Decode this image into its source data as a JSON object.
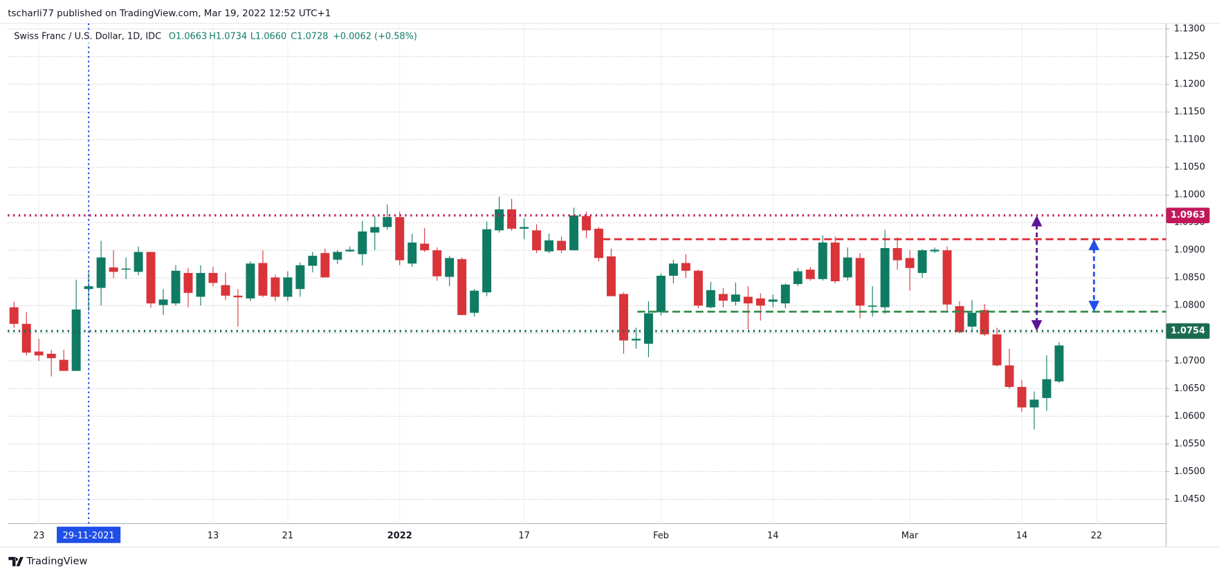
{
  "header": {
    "publisher": "tscharli77 published on TradingView.com, Mar 19, 2022 12:52 UTC+1"
  },
  "footer": {
    "brand": "TradingView"
  },
  "chart_data": {
    "type": "candlestick",
    "title": "Swiss Franc / U.S. Dollar, 1D, IDC",
    "ohlc": [
      "O1.0663",
      "H1.0734",
      "L1.0660",
      "C1.0728",
      "+0.0062 (+0.58%)"
    ],
    "up_color": "#0f7b63",
    "down_color": "#d8343a",
    "open": [
      1.0797,
      1.0767,
      1.0717,
      1.0713,
      1.0702,
      1.0682,
      1.083,
      1.0832,
      1.0869,
      1.0865,
      1.0861,
      1.0897,
      1.0801,
      1.0804,
      1.0859,
      1.0816,
      1.0859,
      1.0837,
      1.0818,
      1.0813,
      1.0877,
      1.0851,
      1.0816,
      1.083,
      1.0872,
      1.0895,
      1.0883,
      1.0898,
      1.0893,
      1.0932,
      1.0942,
      1.096,
      1.0876,
      1.0912,
      1.09,
      1.0852,
      1.0884,
      1.0787,
      1.0824,
      1.0936,
      1.0974,
      1.0939,
      1.0936,
      1.0898,
      1.0917,
      1.09,
      1.0962,
      1.0939,
      1.0889,
      1.0821,
      1.0737,
      1.0731,
      1.0788,
      1.0854,
      1.0877,
      1.0863,
      1.0797,
      1.0821,
      1.0807,
      1.0816,
      1.0813,
      1.0807,
      1.0804,
      1.0839,
      1.0865,
      1.0848,
      1.0914,
      1.0851,
      1.0886,
      1.0798,
      1.0797,
      1.0904,
      1.0886,
      1.0859,
      1.0898,
      1.09,
      1.0799,
      1.0762,
      1.0792,
      1.0748,
      1.0692,
      1.0653,
      1.0616,
      1.0633,
      1.0663
    ],
    "high": [
      1.0807,
      1.0788,
      1.074,
      1.072,
      1.072,
      1.0847,
      1.086,
      1.0917,
      1.09,
      1.0887,
      1.0907,
      1.0897,
      1.083,
      1.0873,
      1.0868,
      1.0873,
      1.087,
      1.086,
      1.083,
      1.088,
      1.09,
      1.0856,
      1.0862,
      1.0878,
      1.0897,
      1.0903,
      1.09,
      1.0907,
      1.0953,
      1.0962,
      1.0983,
      1.097,
      1.093,
      1.094,
      1.0905,
      1.089,
      1.0887,
      1.083,
      1.0952,
      1.0997,
      1.0993,
      1.0958,
      1.0947,
      1.093,
      1.0925,
      1.0977,
      1.097,
      1.0942,
      1.0903,
      1.0824,
      1.076,
      1.0808,
      1.0858,
      1.0883,
      1.0893,
      1.0865,
      1.0843,
      1.0832,
      1.0842,
      1.0835,
      1.0822,
      1.082,
      1.084,
      1.0868,
      1.087,
      1.0927,
      1.0925,
      1.0905,
      1.0895,
      1.0835,
      1.0937,
      1.0923,
      1.09,
      1.0902,
      1.0905,
      1.0907,
      1.0808,
      1.081,
      1.0803,
      1.076,
      1.0722,
      1.0665,
      1.0645,
      1.071,
      1.0734
    ],
    "low": [
      1.076,
      1.071,
      1.07,
      1.0672,
      1.0682,
      1.0682,
      1.079,
      1.08,
      1.085,
      1.0848,
      1.0855,
      1.0796,
      1.0783,
      1.08,
      1.0797,
      1.08,
      1.0835,
      1.081,
      1.0762,
      1.0808,
      1.0815,
      1.0808,
      1.0808,
      1.0816,
      1.086,
      1.0851,
      1.0875,
      1.0897,
      1.0873,
      1.09,
      1.0937,
      1.0873,
      1.087,
      1.0897,
      1.0845,
      1.0835,
      1.0783,
      1.078,
      1.0817,
      1.0932,
      1.0935,
      1.092,
      1.0895,
      1.0895,
      1.0895,
      1.09,
      1.0922,
      1.088,
      1.0817,
      1.0713,
      1.0722,
      1.0707,
      1.0782,
      1.084,
      1.085,
      1.0795,
      1.0795,
      1.0797,
      1.08,
      1.0757,
      1.0773,
      1.0797,
      1.0795,
      1.0835,
      1.0845,
      1.0845,
      1.084,
      1.0845,
      1.0777,
      1.078,
      1.0785,
      1.0865,
      1.0827,
      1.085,
      1.0895,
      1.079,
      1.075,
      1.0752,
      1.0745,
      1.069,
      1.065,
      1.0608,
      1.0576,
      1.061,
      1.066
    ],
    "close": [
      1.0767,
      1.0715,
      1.071,
      1.0705,
      1.0682,
      1.0793,
      1.0835,
      1.0887,
      1.0861,
      1.0867,
      1.0897,
      1.0804,
      1.0811,
      1.0863,
      1.0823,
      1.0859,
      1.0841,
      1.0818,
      1.0815,
      1.0876,
      1.0818,
      1.0816,
      1.0851,
      1.0873,
      1.089,
      1.0851,
      1.0897,
      1.0901,
      1.0934,
      1.0942,
      1.096,
      1.0882,
      1.0914,
      1.09,
      1.0853,
      1.0886,
      1.0783,
      1.0827,
      1.0938,
      1.0974,
      1.0939,
      1.0942,
      1.09,
      1.0918,
      1.09,
      1.0963,
      1.0936,
      1.0886,
      1.0817,
      1.0737,
      1.074,
      1.0786,
      1.0854,
      1.0876,
      1.0863,
      1.08,
      1.0828,
      1.0809,
      1.082,
      1.0804,
      1.08,
      1.0811,
      1.0838,
      1.0862,
      1.0848,
      1.0914,
      1.0844,
      1.0887,
      1.08,
      1.08,
      1.0904,
      1.0882,
      1.0868,
      1.09,
      1.0901,
      1.0802,
      1.0752,
      1.0787,
      1.0748,
      1.0692,
      1.0653,
      1.0616,
      1.063,
      1.0667,
      1.0728
    ],
    "xlim": [
      -0.5,
      92.6
    ],
    "xticks": [
      {
        "value": 2,
        "label": "23"
      },
      {
        "value": 6,
        "label": "29-11-2021"
      },
      {
        "value": 16,
        "label": "13"
      },
      {
        "value": 22,
        "label": "21"
      },
      {
        "value": 31,
        "label": "2022"
      },
      {
        "value": 41,
        "label": "17"
      },
      {
        "value": 52,
        "label": "Feb"
      },
      {
        "value": 61,
        "label": "14"
      },
      {
        "value": 72,
        "label": "Mar"
      },
      {
        "value": 81,
        "label": "14"
      },
      {
        "value": 87,
        "label": "22"
      }
    ],
    "crosshair": 6,
    "ylim": [
      1.0406,
      1.131
    ],
    "yticks": [
      {
        "value": 1.045,
        "label": "1.0450"
      },
      {
        "value": 1.05,
        "label": "1.0500"
      },
      {
        "value": 1.055,
        "label": "1.0550"
      },
      {
        "value": 1.06,
        "label": "1.0600"
      },
      {
        "value": 1.065,
        "label": "1.0650"
      },
      {
        "value": 1.07,
        "label": "1.0700"
      },
      {
        "value": 1.075,
        "label": "1.0750"
      },
      {
        "value": 1.08,
        "label": "1.0800"
      },
      {
        "value": 1.085,
        "label": "1.0850"
      },
      {
        "value": 1.09,
        "label": "1.0900"
      },
      {
        "value": 1.095,
        "label": "1.0950"
      },
      {
        "value": 1.1,
        "label": "1.1000"
      },
      {
        "value": 1.105,
        "label": "1.1050"
      },
      {
        "value": 1.11,
        "label": "1.1100"
      },
      {
        "value": 1.115,
        "label": "1.1150"
      },
      {
        "value": 1.12,
        "label": "1.1200"
      },
      {
        "value": 1.125,
        "label": "1.1250"
      },
      {
        "value": 1.13,
        "label": "1.1300"
      }
    ],
    "grid": true,
    "levels": [
      {
        "value": 1.0963,
        "label": "1.0963",
        "color": "#c2185b",
        "style": "dotted"
      },
      {
        "value": 1.0754,
        "label": "1.0754",
        "color": "#1b6b4f",
        "style": "dotted"
      },
      {
        "value": 1.092,
        "color": "#e3262b",
        "style": "dashed"
      },
      {
        "value": 1.0789,
        "color": "#2e8b47",
        "style": "dashed"
      }
    ],
    "arrows": [
      {
        "from": 1.0963,
        "to": 1.0754,
        "color": "#5e1396"
      },
      {
        "from": 1.092,
        "to": 1.0789,
        "color": "#1f4fe8"
      }
    ]
  }
}
